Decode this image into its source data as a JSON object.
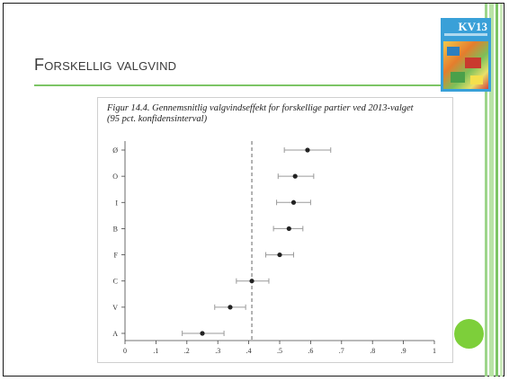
{
  "slide": {
    "title": "Forskellig valgvind",
    "accent_color": "#7cc565",
    "book_label": "KV13"
  },
  "chart_data": {
    "type": "scatter",
    "caption_line1": "Figur 14.4. Gennemsnitlig valgvindseffekt for forskellige partier ved 2013-valget",
    "caption_line2": "(95 pct. konfidensinterval)",
    "categories": [
      "Ø",
      "O",
      "I",
      "B",
      "F",
      "C",
      "V",
      "A"
    ],
    "values": [
      0.59,
      0.55,
      0.545,
      0.53,
      0.5,
      0.41,
      0.34,
      0.25
    ],
    "ci_low": [
      0.515,
      0.495,
      0.49,
      0.48,
      0.455,
      0.36,
      0.29,
      0.185
    ],
    "ci_high": [
      0.665,
      0.61,
      0.6,
      0.575,
      0.545,
      0.465,
      0.39,
      0.32
    ],
    "reference_line": 0.41,
    "xlim": [
      0,
      1
    ],
    "xticks": [
      0,
      0.1,
      0.2,
      0.3,
      0.4,
      0.5,
      0.6,
      0.7,
      0.8,
      0.9,
      1
    ],
    "xtick_labels": [
      "0",
      ".1",
      ".2",
      ".3",
      ".4",
      ".5",
      ".6",
      ".7",
      ".8",
      ".9",
      "1"
    ],
    "grid": false,
    "legend": "none"
  }
}
